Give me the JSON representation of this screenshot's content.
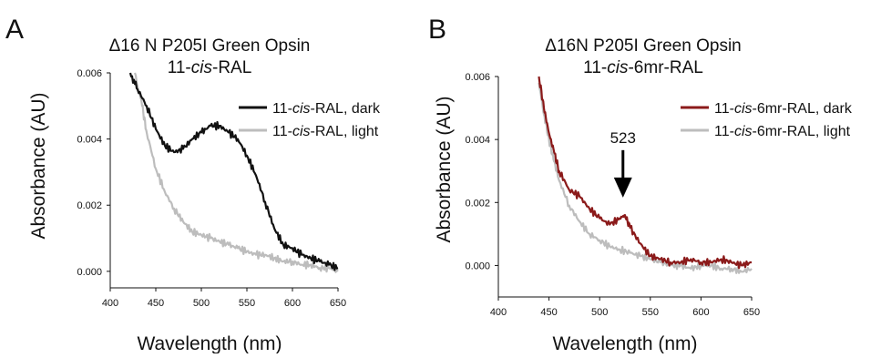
{
  "chart_data": [
    {
      "type": "line",
      "panel": "A",
      "title_line1": "Δ16 N P205I Green Opsin",
      "title_line2": [
        {
          "text": "11-",
          "italic": false
        },
        {
          "text": "cis",
          "italic": true
        },
        {
          "text": "-RAL",
          "italic": false
        }
      ],
      "xlabel": "Wavelength (nm)",
      "ylabel": "Absorbance (AU)",
      "xlim": [
        400,
        650
      ],
      "ylim": [
        -0.0005,
        0.006
      ],
      "xticks": [
        "400",
        "450",
        "500",
        "550",
        "600",
        "650"
      ],
      "yticks": [
        "0.000",
        "0.002",
        "0.004",
        "0.006"
      ],
      "legend_position": "top-right",
      "series": [
        {
          "name": [
            {
              "text": "11-",
              "italic": false
            },
            {
              "text": "cis",
              "italic": true
            },
            {
              "text": "-RAL, dark",
              "italic": false
            }
          ],
          "color": "#111111",
          "x": [
            422,
            430,
            440,
            450,
            460,
            470,
            480,
            490,
            500,
            510,
            520,
            530,
            540,
            550,
            560,
            570,
            580,
            590,
            600,
            610,
            620,
            630,
            640,
            650
          ],
          "y": [
            0.006,
            0.0055,
            0.005,
            0.0043,
            0.0038,
            0.0036,
            0.0037,
            0.004,
            0.0042,
            0.0044,
            0.0044,
            0.0042,
            0.004,
            0.0035,
            0.0029,
            0.0021,
            0.0013,
            0.0008,
            0.0007,
            0.0005,
            0.0004,
            0.0003,
            0.0002,
            0.0001
          ]
        },
        {
          "name": [
            {
              "text": "11-",
              "italic": false
            },
            {
              "text": "cis",
              "italic": true
            },
            {
              "text": "-RAL, light",
              "italic": false
            }
          ],
          "color": "#bdbdbd",
          "x": [
            427,
            435,
            440,
            450,
            460,
            470,
            480,
            490,
            500,
            510,
            520,
            530,
            540,
            550,
            560,
            570,
            580,
            590,
            600,
            610,
            620,
            630,
            640,
            650
          ],
          "y": [
            0.006,
            0.005,
            0.0042,
            0.0031,
            0.0024,
            0.0019,
            0.0015,
            0.0012,
            0.0011,
            0.001,
            0.0009,
            0.0008,
            0.0007,
            0.0006,
            0.0005,
            0.0005,
            0.0004,
            0.0003,
            0.0003,
            0.0002,
            0.0002,
            0.0001,
            0.0001,
            0.0
          ]
        }
      ]
    },
    {
      "type": "line",
      "panel": "B",
      "title_line1": "Δ16N P205I Green Opsin",
      "title_line2": [
        {
          "text": "11-",
          "italic": false
        },
        {
          "text": "cis",
          "italic": true
        },
        {
          "text": "-6mr-RAL",
          "italic": false
        }
      ],
      "xlabel": "Wavelength (nm)",
      "ylabel": "Absorbance (AU)",
      "xlim": [
        400,
        650
      ],
      "ylim": [
        -0.001,
        0.006
      ],
      "xticks": [
        "400",
        "450",
        "500",
        "550",
        "600",
        "650"
      ],
      "yticks": [
        "0.000",
        "0.002",
        "0.004",
        "0.006"
      ],
      "legend_position": "top-right",
      "annotation": {
        "text": "523",
        "x": 523,
        "y": 0.0021
      },
      "series": [
        {
          "name": [
            {
              "text": "11-",
              "italic": false
            },
            {
              "text": "cis",
              "italic": true
            },
            {
              "text": "-6mr-RAL, dark",
              "italic": false
            }
          ],
          "color": "#8b1a1a",
          "x": [
            440,
            445,
            450,
            455,
            460,
            470,
            480,
            490,
            500,
            510,
            520,
            525,
            530,
            540,
            550,
            560,
            570,
            580,
            590,
            600,
            610,
            620,
            630,
            640,
            650
          ],
          "y": [
            0.006,
            0.005,
            0.0042,
            0.0036,
            0.003,
            0.0024,
            0.0022,
            0.0018,
            0.0015,
            0.0013,
            0.0015,
            0.0016,
            0.0012,
            0.0007,
            0.0003,
            0.0002,
            0.0001,
            0.0001,
            0.0002,
            0.0001,
            0.0001,
            0.0002,
            0.0001,
            0.0,
            0.0001
          ]
        },
        {
          "name": [
            {
              "text": "11-",
              "italic": false
            },
            {
              "text": "cis",
              "italic": true
            },
            {
              "text": "-6mr-RAL, light",
              "italic": false
            }
          ],
          "color": "#bdbdbd",
          "x": [
            440,
            445,
            450,
            455,
            460,
            470,
            480,
            490,
            500,
            510,
            520,
            530,
            540,
            550,
            560,
            570,
            580,
            590,
            600,
            610,
            620,
            630,
            640,
            650
          ],
          "y": [
            0.0058,
            0.0048,
            0.004,
            0.0033,
            0.0027,
            0.0019,
            0.0014,
            0.001,
            0.0008,
            0.0006,
            0.0005,
            0.0004,
            0.0003,
            0.0002,
            0.0001,
            0.0,
            0.0,
            -0.0001,
            0.0,
            0.0,
            -0.0001,
            -0.0001,
            -0.0002,
            -0.0001
          ]
        }
      ]
    }
  ]
}
